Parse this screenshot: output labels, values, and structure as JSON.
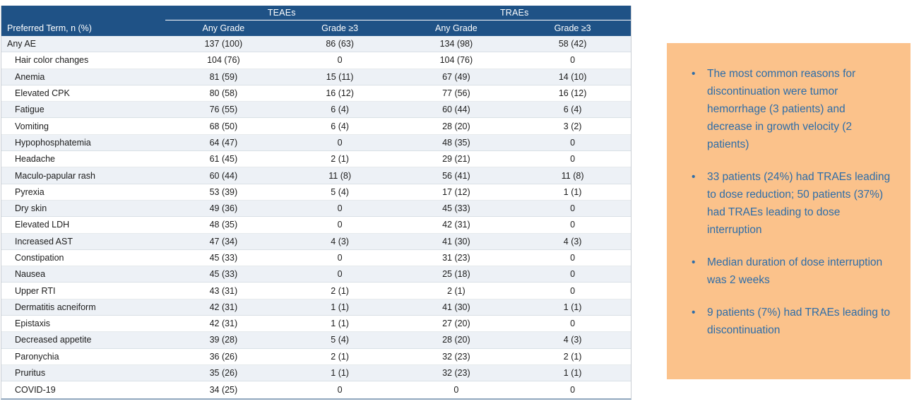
{
  "colors": {
    "header_blue": "#1F5286",
    "row_stripe": "#EDF1F6",
    "table_bottom_border": "#8FA6BD",
    "callout_background": "#FBC28B",
    "callout_text": "#2E6DA8"
  },
  "table": {
    "group_headers": [
      "TEAEs",
      "TRAEs"
    ],
    "corner_header": "Preferred Term, n (%)",
    "sub_headers": [
      "Any Grade",
      "Grade ≥3",
      "Any Grade",
      "Grade ≥3"
    ],
    "rows": [
      {
        "term": "Any AE",
        "indent": false,
        "values": [
          "137 (100)",
          "86 (63)",
          "134 (98)",
          "58 (42)"
        ]
      },
      {
        "term": "Hair color changes",
        "indent": true,
        "values": [
          "104 (76)",
          "0",
          "104 (76)",
          "0"
        ]
      },
      {
        "term": "Anemia",
        "indent": true,
        "values": [
          "81 (59)",
          "15 (11)",
          "67 (49)",
          "14 (10)"
        ]
      },
      {
        "term": "Elevated CPK",
        "indent": true,
        "values": [
          "80 (58)",
          "16 (12)",
          "77 (56)",
          "16 (12)"
        ]
      },
      {
        "term": "Fatigue",
        "indent": true,
        "values": [
          "76 (55)",
          "6 (4)",
          "60 (44)",
          "6 (4)"
        ]
      },
      {
        "term": "Vomiting",
        "indent": true,
        "values": [
          "68 (50)",
          "6 (4)",
          "28 (20)",
          "3 (2)"
        ]
      },
      {
        "term": "Hypophosphatemia",
        "indent": true,
        "values": [
          "64 (47)",
          "0",
          "48 (35)",
          "0"
        ]
      },
      {
        "term": "Headache",
        "indent": true,
        "values": [
          "61 (45)",
          "2 (1)",
          "29 (21)",
          "0"
        ]
      },
      {
        "term": "Maculo-papular rash",
        "indent": true,
        "values": [
          "60 (44)",
          "11 (8)",
          "56 (41)",
          "11 (8)"
        ]
      },
      {
        "term": "Pyrexia",
        "indent": true,
        "values": [
          "53 (39)",
          "5 (4)",
          "17 (12)",
          "1 (1)"
        ]
      },
      {
        "term": "Dry skin",
        "indent": true,
        "values": [
          "49 (36)",
          "0",
          "45 (33)",
          "0"
        ]
      },
      {
        "term": "Elevated LDH",
        "indent": true,
        "values": [
          "48 (35)",
          "0",
          "42 (31)",
          "0"
        ]
      },
      {
        "term": "Increased AST",
        "indent": true,
        "values": [
          "47 (34)",
          "4 (3)",
          "41 (30)",
          "4 (3)"
        ]
      },
      {
        "term": "Constipation",
        "indent": true,
        "values": [
          "45 (33)",
          "0",
          "31 (23)",
          "0"
        ]
      },
      {
        "term": "Nausea",
        "indent": true,
        "values": [
          "45 (33)",
          "0",
          "25 (18)",
          "0"
        ]
      },
      {
        "term": "Upper RTI",
        "indent": true,
        "values": [
          "43 (31)",
          "2 (1)",
          "2 (1)",
          "0"
        ]
      },
      {
        "term": "Dermatitis acneiform",
        "indent": true,
        "values": [
          "42 (31)",
          "1 (1)",
          "41 (30)",
          "1 (1)"
        ]
      },
      {
        "term": "Epistaxis",
        "indent": true,
        "values": [
          "42 (31)",
          "1 (1)",
          "27 (20)",
          "0"
        ]
      },
      {
        "term": "Decreased appetite",
        "indent": true,
        "values": [
          "39 (28)",
          "5 (4)",
          "28 (20)",
          "4 (3)"
        ]
      },
      {
        "term": "Paronychia",
        "indent": true,
        "values": [
          "36 (26)",
          "2 (1)",
          "32 (23)",
          "2 (1)"
        ]
      },
      {
        "term": "Pruritus",
        "indent": true,
        "values": [
          "35 (26)",
          "1 (1)",
          "32 (23)",
          "1 (1)"
        ]
      },
      {
        "term": "COVID-19",
        "indent": true,
        "values": [
          "34 (25)",
          "0",
          "0",
          "0"
        ]
      }
    ]
  },
  "callout": {
    "bullet_glyph": "•",
    "bullets": [
      "The most common reasons for discontinuation were tumor hemorrhage (3 patients) and decrease in growth velocity (2 patients)",
      "33 patients (24%) had TRAEs leading to dose reduction; 50 patients (37%) had TRAEs leading to dose interruption",
      "Median duration of dose interruption was 2 weeks",
      "9 patients (7%) had TRAEs leading to discontinuation"
    ]
  }
}
